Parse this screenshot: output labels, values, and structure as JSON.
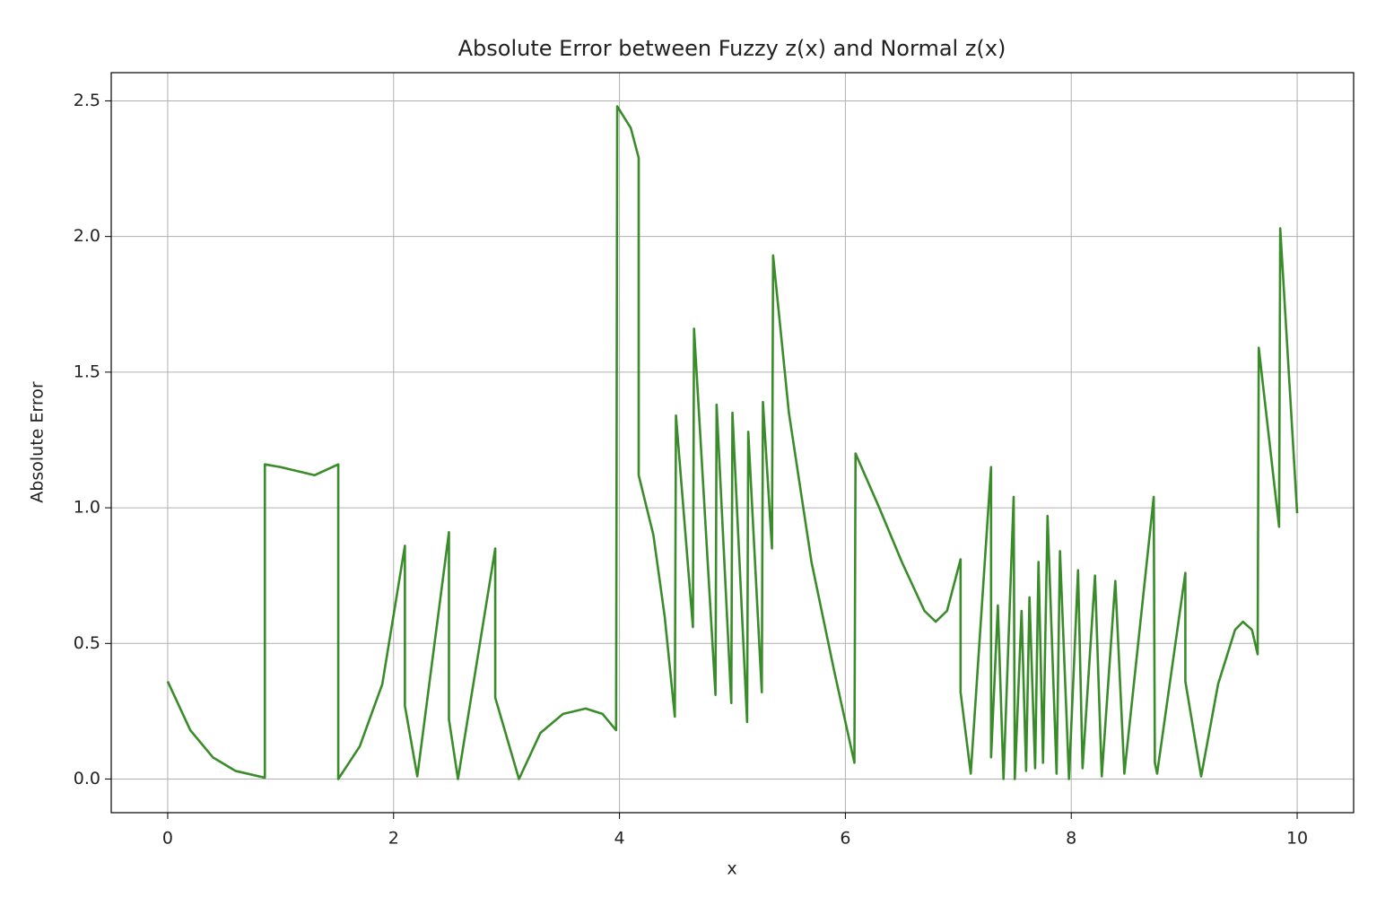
{
  "chart_data": {
    "type": "line",
    "title": "Absolute Error between Fuzzy z(x) and Normal z(x)",
    "xlabel": "x",
    "ylabel": "Absolute Error",
    "color": "#2f861f",
    "grid": true,
    "xlim": [
      -0.5,
      10.5
    ],
    "ylim": [
      -0.124,
      2.604
    ],
    "xticks": [
      0,
      2,
      4,
      6,
      8,
      10
    ],
    "yticks": [
      {
        "value": 0,
        "label": "0.0"
      },
      0.5,
      {
        "value": 1,
        "label": "1.0"
      },
      1.5,
      {
        "value": 2,
        "label": "2.0"
      },
      2.5
    ],
    "x": [
      0,
      0.2,
      0.4,
      0.6,
      0.86,
      0.86,
      1.0,
      1.3,
      1.51,
      1.51,
      1.7,
      1.9,
      2.1,
      2.1,
      2.21,
      2.49,
      2.49,
      2.57,
      2.9,
      2.9,
      3.11,
      3.3,
      3.5,
      3.7,
      3.85,
      3.97,
      3.98,
      4.1,
      4.17,
      4.17,
      4.3,
      4.4,
      4.49,
      4.5,
      4.65,
      4.66,
      4.85,
      4.86,
      4.99,
      5.0,
      5.13,
      5.14,
      5.26,
      5.27,
      5.35,
      5.36,
      5.5,
      5.7,
      5.9,
      6.08,
      6.09,
      6.3,
      6.5,
      6.7,
      6.8,
      6.9,
      7.02,
      7.02,
      7.11,
      7.29,
      7.29,
      7.35,
      7.4,
      7.49,
      7.5,
      7.56,
      7.6,
      7.63,
      7.68,
      7.71,
      7.75,
      7.79,
      7.87,
      7.9,
      7.98,
      8.06,
      8.1,
      8.21,
      8.27,
      8.39,
      8.47,
      8.73,
      8.74,
      8.76,
      9.01,
      9.01,
      9.15,
      9.3,
      9.45,
      9.52,
      9.6,
      9.65,
      9.66,
      9.84,
      9.85,
      10.0
    ],
    "values": [
      0.36,
      0.18,
      0.08,
      0.03,
      0.005,
      1.16,
      1.15,
      1.12,
      1.16,
      0.0,
      0.12,
      0.35,
      0.86,
      0.27,
      0.01,
      0.91,
      0.22,
      0.0,
      0.85,
      0.3,
      0.0,
      0.17,
      0.24,
      0.26,
      0.24,
      0.18,
      2.48,
      2.4,
      2.29,
      1.12,
      0.9,
      0.6,
      0.23,
      1.34,
      0.56,
      1.66,
      0.31,
      1.38,
      0.28,
      1.35,
      0.21,
      1.28,
      0.32,
      1.39,
      0.85,
      1.93,
      1.35,
      0.8,
      0.4,
      0.06,
      1.2,
      1.0,
      0.8,
      0.62,
      0.58,
      0.62,
      0.81,
      0.32,
      0.02,
      1.15,
      0.08,
      0.64,
      0.0,
      1.04,
      0.0,
      0.62,
      0.03,
      0.67,
      0.04,
      0.8,
      0.06,
      0.97,
      0.02,
      0.84,
      0.0,
      0.77,
      0.04,
      0.75,
      0.01,
      0.73,
      0.02,
      1.04,
      0.06,
      0.02,
      0.76,
      0.36,
      0.01,
      0.35,
      0.55,
      0.58,
      0.55,
      0.46,
      1.59,
      0.93,
      2.03,
      0.98
    ]
  }
}
